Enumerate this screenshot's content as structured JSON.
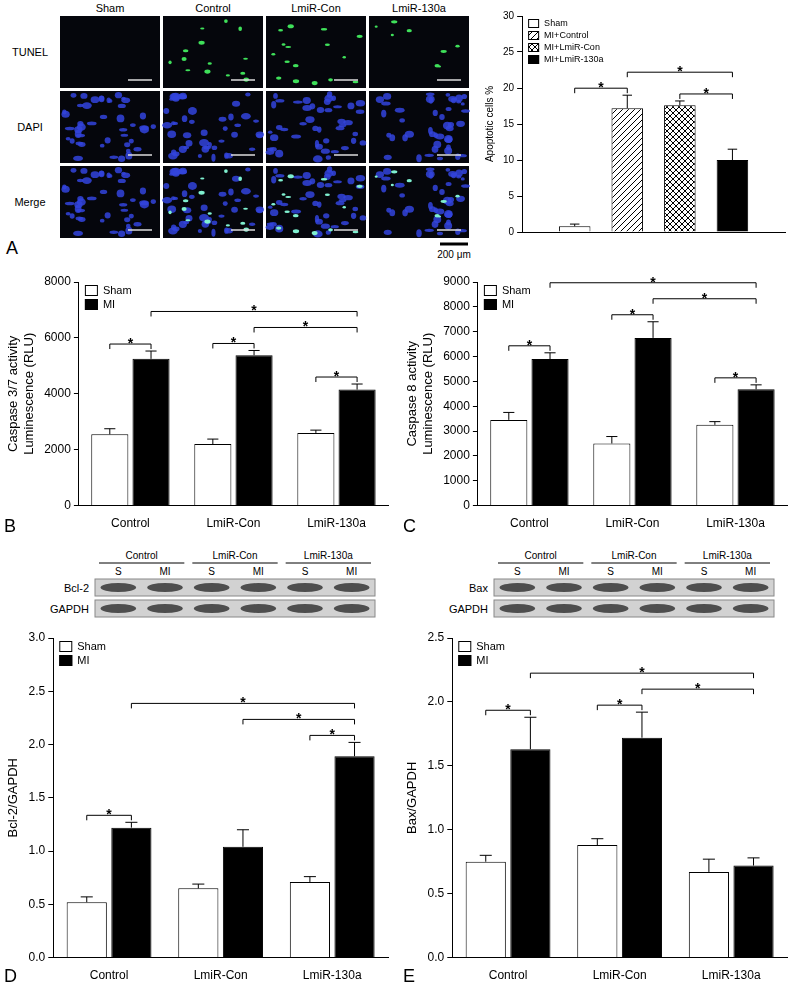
{
  "figure": {
    "panel_labels": [
      "A",
      "B",
      "C",
      "D",
      "E"
    ],
    "micrographs": {
      "columns": [
        "Sham",
        "Control",
        "LmiR-Con",
        "LmiR-130a"
      ],
      "rows": [
        "TUNEL",
        "DAPI",
        "Merge"
      ],
      "scale_bar": "200 μm"
    },
    "blots": [
      {
        "groups": [
          "Control",
          "LmiR-Con",
          "LmiR-130a"
        ],
        "lanes": [
          "S",
          "MI",
          "S",
          "MI",
          "S",
          "MI"
        ],
        "rows": [
          "Bcl-2",
          "GAPDH"
        ]
      },
      {
        "groups": [
          "Control",
          "LmiR-Con",
          "LmiR-130a"
        ],
        "lanes": [
          "S",
          "MI",
          "S",
          "MI",
          "S",
          "MI"
        ],
        "rows": [
          "Bax",
          "GAPDH"
        ]
      }
    ]
  },
  "chart_data": [
    {
      "type": "bar",
      "y_label": "Apoptotic cells %",
      "categories": [
        null
      ],
      "series": [
        {
          "name": "Sham",
          "color": "#ffffff",
          "values": [
            0.8
          ],
          "errors": [
            0.3
          ]
        },
        {
          "name": "MI+Control",
          "color": "#ffffff",
          "values": [
            17.2
          ],
          "errors": [
            1.8
          ]
        },
        {
          "name": "MI+LmiR-Con",
          "color": "#ffffff",
          "values": [
            17.6
          ],
          "errors": [
            0.6
          ]
        },
        {
          "name": "MI+LmiR-130a",
          "color": "#000000",
          "values": [
            10.0
          ],
          "errors": [
            1.5
          ]
        }
      ],
      "ylim": [
        0,
        30
      ],
      "yticks": [
        0,
        5,
        10,
        15,
        20,
        25,
        30
      ],
      "grid": false,
      "legend": "top-left",
      "tick_labels": "y",
      "brackets": [
        {
          "from": {
            "series": "Sham",
            "category": 0
          },
          "to": {
            "series": "MI+Control",
            "category": 0
          },
          "label": "*"
        },
        {
          "from": {
            "series": "MI+Control",
            "category": 0
          },
          "to": {
            "series": "MI+LmiR-130a",
            "category": 0
          },
          "label": "*"
        },
        {
          "from": {
            "series": "MI+LmiR-Con",
            "category": 0
          },
          "to": {
            "series": "MI+LmiR-130a",
            "category": 0
          },
          "label": "*"
        }
      ]
    },
    {
      "type": "bar",
      "y_label": "Caspase 3/7 activity\nLuminescence (RLU)",
      "categories": [
        "Control",
        "LmiR-Con",
        "LmiR-130a"
      ],
      "series": [
        {
          "name": "Sham",
          "color": "#ffffff",
          "values": [
            2550,
            2200,
            2600
          ],
          "errors": [
            200,
            180,
            100
          ]
        },
        {
          "name": "MI",
          "color": "#000000",
          "values": [
            5250,
            5380,
            4150
          ],
          "errors": [
            280,
            170,
            200
          ]
        }
      ],
      "ylim": [
        0,
        8000
      ],
      "yticks": [
        0,
        2000,
        4000,
        6000,
        8000
      ],
      "grid": false,
      "legend": "top-left",
      "tick_labels": true,
      "brackets": [
        {
          "from": {
            "series": "Sham",
            "category": 0
          },
          "to": {
            "series": "MI",
            "category": 0
          },
          "label": "*"
        },
        {
          "from": {
            "series": "Sham",
            "category": 1
          },
          "to": {
            "series": "MI",
            "category": 1
          },
          "label": "*"
        },
        {
          "from": {
            "series": "MI",
            "category": 1
          },
          "to": {
            "series": "MI",
            "category": 2
          },
          "label": "*"
        },
        {
          "from": {
            "series": "Sham",
            "category": 2
          },
          "to": {
            "series": "MI",
            "category": 2
          },
          "label": "*"
        },
        {
          "from": {
            "series": "MI",
            "category": 0
          },
          "to": {
            "series": "MI",
            "category": 2
          },
          "label": "*"
        }
      ]
    },
    {
      "type": "bar",
      "y_label": "Caspase 8 activity\nLuminescence (RLU)",
      "categories": [
        "Control",
        "LmiR-Con",
        "LmiR-130a"
      ],
      "series": [
        {
          "name": "Sham",
          "color": "#ffffff",
          "values": [
            3450,
            2500,
            3250
          ],
          "errors": [
            300,
            280,
            130
          ]
        },
        {
          "name": "MI",
          "color": "#000000",
          "values": [
            5900,
            6750,
            4680
          ],
          "errors": [
            250,
            650,
            180
          ]
        }
      ],
      "ylim": [
        0,
        9000
      ],
      "yticks": [
        0,
        1000,
        2000,
        3000,
        4000,
        5000,
        6000,
        7000,
        8000,
        9000
      ],
      "grid": false,
      "legend": "top-left",
      "tick_labels": true,
      "brackets": [
        {
          "from": {
            "series": "Sham",
            "category": 0
          },
          "to": {
            "series": "MI",
            "category": 0
          },
          "label": "*"
        },
        {
          "from": {
            "series": "Sham",
            "category": 1
          },
          "to": {
            "series": "MI",
            "category": 1
          },
          "label": "*"
        },
        {
          "from": {
            "series": "MI",
            "category": 1
          },
          "to": {
            "series": "MI",
            "category": 2
          },
          "label": "*"
        },
        {
          "from": {
            "series": "Sham",
            "category": 2
          },
          "to": {
            "series": "MI",
            "category": 2
          },
          "label": "*"
        },
        {
          "from": {
            "series": "MI",
            "category": 0
          },
          "to": {
            "series": "MI",
            "category": 2
          },
          "label": "*"
        }
      ]
    },
    {
      "type": "bar",
      "y_label": "Bcl-2/GAPDH",
      "categories": [
        "Control",
        "LmiR-Con",
        "LmiR-130a"
      ],
      "series": [
        {
          "name": "Sham",
          "color": "#ffffff",
          "values": [
            0.52,
            0.65,
            0.71
          ],
          "errors": [
            0.05,
            0.04,
            0.05
          ]
        },
        {
          "name": "MI",
          "color": "#000000",
          "values": [
            1.22,
            1.04,
            1.89
          ],
          "errors": [
            0.05,
            0.16,
            0.13
          ]
        }
      ],
      "ylim": [
        0,
        3.0
      ],
      "yticks": [
        {
          "value": 0,
          "label": "0.0"
        },
        {
          "value": 0.5,
          "label": "0.5"
        },
        {
          "value": 1,
          "label": "1.0"
        },
        {
          "value": 1.5,
          "label": "1.5"
        },
        {
          "value": 2,
          "label": "2.0"
        },
        {
          "value": 2.5,
          "label": "2.5"
        },
        {
          "value": 3,
          "label": "3.0"
        }
      ],
      "grid": false,
      "legend": "top-left",
      "tick_labels": true,
      "brackets": [
        {
          "from": {
            "series": "Sham",
            "category": 0
          },
          "to": {
            "series": "MI",
            "category": 0
          },
          "label": "*"
        },
        {
          "from": {
            "series": "MI",
            "category": 0
          },
          "to": {
            "series": "MI",
            "category": 2
          },
          "label": "*"
        },
        {
          "from": {
            "series": "MI",
            "category": 1
          },
          "to": {
            "series": "MI",
            "category": 2
          },
          "label": "*"
        },
        {
          "from": {
            "series": "Sham",
            "category": 2
          },
          "to": {
            "series": "MI",
            "category": 2
          },
          "label": "*"
        }
      ]
    },
    {
      "type": "bar",
      "y_label": "Bax/GAPDH",
      "categories": [
        "Control",
        "LmiR-Con",
        "LmiR-130a"
      ],
      "series": [
        {
          "name": "Sham",
          "color": "#ffffff",
          "values": [
            0.75,
            0.88,
            0.67
          ],
          "errors": [
            0.05,
            0.05,
            0.1
          ]
        },
        {
          "name": "MI",
          "color": "#000000",
          "values": [
            1.63,
            1.72,
            0.72
          ],
          "errors": [
            0.25,
            0.2,
            0.06
          ]
        }
      ],
      "ylim": [
        0,
        2.5
      ],
      "yticks": [
        {
          "value": 0,
          "label": "0.0"
        },
        {
          "value": 0.5,
          "label": "0.5"
        },
        {
          "value": 1,
          "label": "1.0"
        },
        {
          "value": 1.5,
          "label": "1.5"
        },
        {
          "value": 2,
          "label": "2.0"
        },
        {
          "value": 2.5,
          "label": "2.5"
        }
      ],
      "grid": false,
      "legend": "top-left",
      "tick_labels": true,
      "brackets": [
        {
          "from": {
            "series": "Sham",
            "category": 0
          },
          "to": {
            "series": "MI",
            "category": 0
          },
          "label": "*"
        },
        {
          "from": {
            "series": "Sham",
            "category": 1
          },
          "to": {
            "series": "MI",
            "category": 1
          },
          "label": "*"
        },
        {
          "from": {
            "series": "MI",
            "category": 0
          },
          "to": {
            "series": "MI",
            "category": 2
          },
          "label": "*"
        },
        {
          "from": {
            "series": "MI",
            "category": 1
          },
          "to": {
            "series": "MI",
            "category": 2
          },
          "label": "*"
        }
      ]
    }
  ]
}
